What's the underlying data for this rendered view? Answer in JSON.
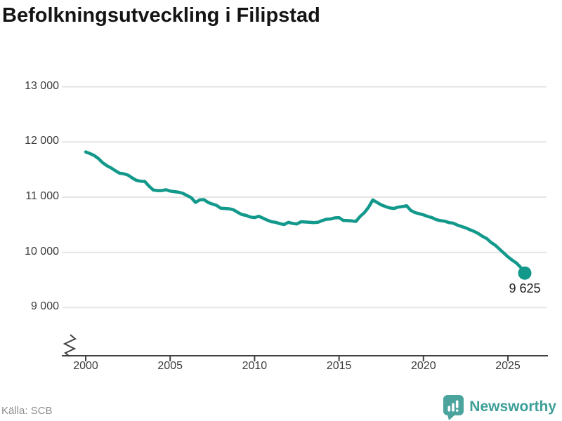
{
  "title": "Befolkningsutveckling i Filipstad",
  "source": "Källa: SCB",
  "branding": {
    "name": "Newsworthy",
    "icon": "newsworthy-bubble-bars-icon"
  },
  "colors": {
    "line": "#12998b",
    "dot": "#12998b",
    "grid": "#e5e5e5",
    "axis": "#404040",
    "tick_text": "#3c3c3c",
    "title_text": "#141414",
    "end_label_text": "#1f1f1f",
    "source_text": "#8e8e8e",
    "logo_bubble": "#4aa39c",
    "logo_text": "#3d9f98"
  },
  "chart_data": {
    "type": "line",
    "title": "Befolkningsutveckling i Filipstad",
    "xlabel": "",
    "ylabel": "",
    "grid": "horizontal",
    "axis_break": true,
    "legend": "none",
    "xlim": [
      2000,
      2026.3
    ],
    "ylim": [
      9000,
      13000
    ],
    "y_ticks": [
      {
        "value": 13000,
        "label": "13 000"
      },
      {
        "value": 12000,
        "label": "12 000"
      },
      {
        "value": 11000,
        "label": "11 000"
      },
      {
        "value": 10000,
        "label": "10 000"
      },
      {
        "value": 9000,
        "label": "9 000"
      }
    ],
    "x_ticks": [
      {
        "value": 2000,
        "label": "2000"
      },
      {
        "value": 2005,
        "label": "2005"
      },
      {
        "value": 2010,
        "label": "2010"
      },
      {
        "value": 2015,
        "label": "2015"
      },
      {
        "value": 2020,
        "label": "2020"
      },
      {
        "value": 2025,
        "label": "2025"
      }
    ],
    "x": [
      2000,
      2000.25,
      2000.5,
      2000.75,
      2001,
      2001.25,
      2001.5,
      2001.75,
      2002,
      2002.25,
      2002.5,
      2002.75,
      2003,
      2003.25,
      2003.5,
      2003.75,
      2004,
      2004.25,
      2004.5,
      2004.75,
      2005,
      2005.25,
      2005.5,
      2005.75,
      2006,
      2006.25,
      2006.5,
      2006.75,
      2007,
      2007.25,
      2007.5,
      2007.75,
      2008,
      2008.25,
      2008.5,
      2008.75,
      2009,
      2009.25,
      2009.5,
      2009.75,
      2010,
      2010.25,
      2010.5,
      2010.75,
      2011,
      2011.25,
      2011.5,
      2011.75,
      2012,
      2012.25,
      2012.5,
      2012.75,
      2013,
      2013.25,
      2013.5,
      2013.75,
      2014,
      2014.25,
      2014.5,
      2014.75,
      2015,
      2015.25,
      2015.5,
      2015.75,
      2016,
      2016.25,
      2016.5,
      2016.75,
      2017,
      2017.25,
      2017.5,
      2017.75,
      2018,
      2018.25,
      2018.5,
      2018.75,
      2019,
      2019.25,
      2019.5,
      2019.75,
      2020,
      2020.25,
      2020.5,
      2020.75,
      2021,
      2021.25,
      2021.5,
      2021.75,
      2022,
      2022.25,
      2022.5,
      2022.75,
      2023,
      2023.25,
      2023.5,
      2023.75,
      2024,
      2024.25,
      2024.5,
      2024.75,
      2025,
      2025.25,
      2025.5,
      2025.75,
      2026
    ],
    "values": [
      11820,
      11790,
      11755,
      11700,
      11625,
      11570,
      11530,
      11480,
      11435,
      11425,
      11400,
      11350,
      11305,
      11290,
      11285,
      11200,
      11130,
      11120,
      11120,
      11135,
      11110,
      11100,
      11090,
      11070,
      11030,
      10990,
      10905,
      10950,
      10955,
      10905,
      10875,
      10850,
      10800,
      10795,
      10790,
      10770,
      10725,
      10685,
      10670,
      10640,
      10630,
      10655,
      10620,
      10585,
      10555,
      10545,
      10520,
      10505,
      10545,
      10525,
      10515,
      10555,
      10550,
      10545,
      10540,
      10545,
      10575,
      10600,
      10605,
      10625,
      10630,
      10580,
      10575,
      10570,
      10560,
      10650,
      10720,
      10820,
      10950,
      10905,
      10860,
      10830,
      10805,
      10795,
      10820,
      10830,
      10845,
      10760,
      10720,
      10700,
      10680,
      10650,
      10630,
      10595,
      10575,
      10565,
      10540,
      10530,
      10495,
      10470,
      10445,
      10410,
      10380,
      10340,
      10290,
      10250,
      10180,
      10130,
      10060,
      9990,
      9920,
      9860,
      9810,
      9730,
      9625
    ],
    "last_point": {
      "year": 2026,
      "value": 9625,
      "label": "9 625"
    }
  }
}
